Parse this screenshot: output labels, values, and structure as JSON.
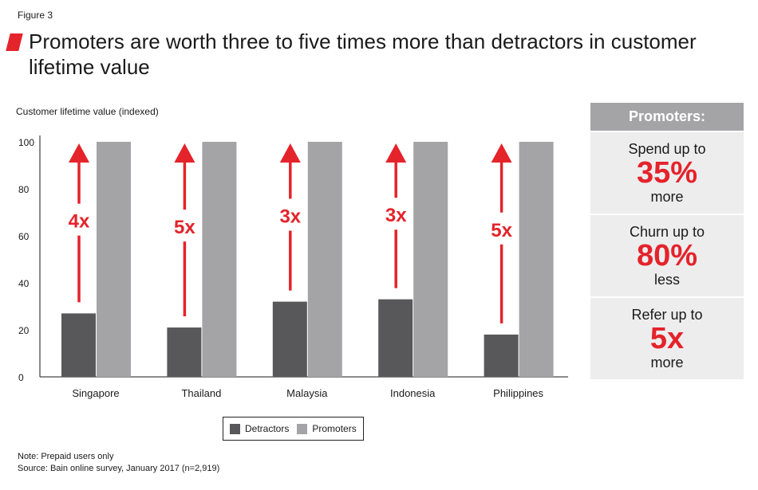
{
  "figure_label": "Figure 3",
  "title": "Promoters are worth three to five times more than detractors in customer lifetime value",
  "colors": {
    "detractors": "#58585a",
    "promoters": "#a4a4a7",
    "accent": "#e4232b"
  },
  "chart_data": {
    "type": "bar",
    "ylabel": "Customer lifetime value (indexed)",
    "ylim": [
      0,
      100
    ],
    "yticks": [
      0,
      20,
      40,
      60,
      80,
      100
    ],
    "categories": [
      "Singapore",
      "Thailand",
      "Malaysia",
      "Indonesia",
      "Philippines"
    ],
    "series": [
      {
        "name": "Detractors",
        "values": [
          27,
          21,
          32,
          33,
          18
        ]
      },
      {
        "name": "Promoters",
        "values": [
          100,
          100,
          100,
          100,
          100
        ]
      }
    ],
    "multipliers": [
      "4x",
      "5x",
      "3x",
      "3x",
      "5x"
    ],
    "grid": false,
    "legend": "bottom-center"
  },
  "panel": {
    "header": "Promoters:",
    "items": [
      {
        "top": "Spend up to",
        "big": "35%",
        "bottom": "more"
      },
      {
        "top": "Churn up to",
        "big": "80%",
        "bottom": "less"
      },
      {
        "top": "Refer up to",
        "big": "5x",
        "bottom": "more"
      }
    ]
  },
  "notes": {
    "note": "Note: Prepaid users only",
    "source": "Source: Bain online survey, January 2017 (n=2,919)"
  }
}
